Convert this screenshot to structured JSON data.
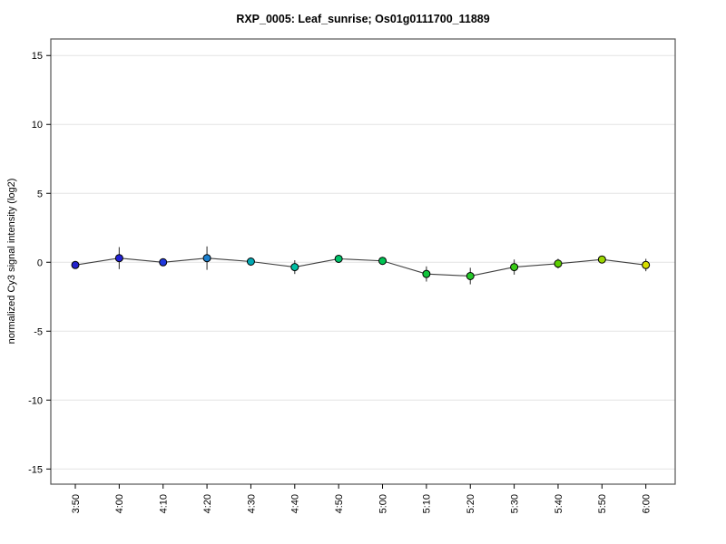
{
  "chart_data": {
    "type": "line",
    "title": "RXP_0005: Leaf_sunrise; Os01g0111700_11889",
    "xlabel": "",
    "ylabel": "normalized Cy3 signal intensity (log2)",
    "categories": [
      "3:50",
      "4:00",
      "4:10",
      "4:20",
      "4:30",
      "4:40",
      "4:50",
      "5:00",
      "5:10",
      "5:20",
      "5:30",
      "5:40",
      "5:50",
      "6:00"
    ],
    "values": [
      -0.2,
      0.3,
      0.0,
      0.3,
      0.05,
      -0.35,
      0.25,
      0.1,
      -0.85,
      -1.0,
      -0.35,
      -0.1,
      0.2,
      -0.2
    ],
    "error_bars": [
      0.1,
      0.8,
      0.15,
      0.85,
      0.3,
      0.5,
      0.2,
      0.1,
      0.55,
      0.6,
      0.55,
      0.35,
      0.15,
      0.45
    ],
    "point_colors": [
      "#2121cc",
      "#2222d6",
      "#2038dd",
      "#1b80cf",
      "#00a9b4",
      "#00bfa4",
      "#00c36b",
      "#00c353",
      "#12c53c",
      "#24c828",
      "#38cb16",
      "#5ccf00",
      "#9bd600",
      "#d7de00"
    ],
    "yticks": [
      -15,
      -10,
      -5,
      0,
      5,
      10,
      15
    ],
    "ylim": [
      -16.1,
      16.2
    ],
    "grid": "horizontal",
    "legend": "none",
    "line_color": "#404040",
    "grid_color": "#e4e4e4",
    "box_color": "#555555",
    "marker_border_color": "#000000"
  }
}
